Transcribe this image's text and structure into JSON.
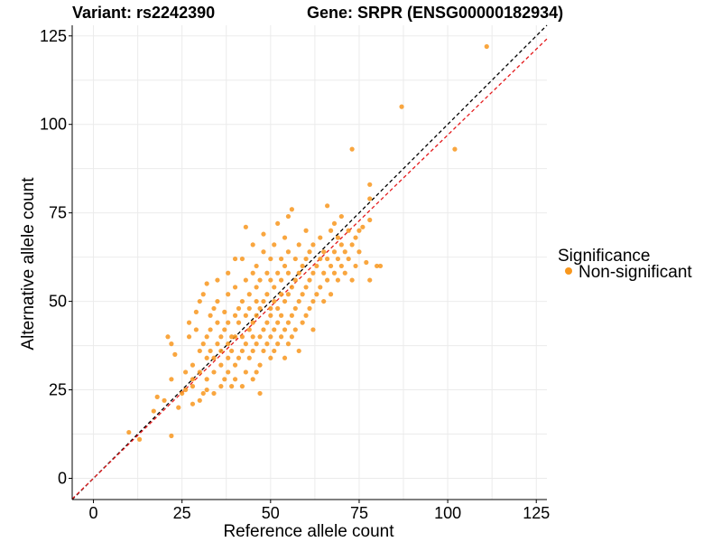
{
  "chart_data": {
    "type": "scatter",
    "title_left": "Variant: rs2242390",
    "title_right": "Gene: SRPR (ENSG00000182934)",
    "xlabel": "Reference allele count",
    "ylabel": "Alternative allele count",
    "xlim": [
      -6,
      128
    ],
    "ylim": [
      -6,
      128
    ],
    "xticks": [
      0,
      25,
      50,
      75,
      100,
      125
    ],
    "yticks": [
      0,
      25,
      50,
      75,
      100,
      125
    ],
    "grid": true,
    "legend": {
      "title": "Significance",
      "placement": "right",
      "entries": [
        {
          "label": "Non-significant",
          "color": "#f8971d"
        }
      ]
    },
    "reference_lines": [
      {
        "style": "dashed",
        "color": "#000000",
        "slope": 1.0,
        "intercept": 0
      },
      {
        "style": "dashed",
        "color": "#e41a1c",
        "slope": 0.97,
        "intercept": 0
      }
    ],
    "series": [
      {
        "color": "#f8971d",
        "points": [
          [
            10,
            13
          ],
          [
            13,
            11
          ],
          [
            17,
            19
          ],
          [
            18,
            23
          ],
          [
            20,
            22
          ],
          [
            21,
            40
          ],
          [
            22,
            12
          ],
          [
            22,
            28
          ],
          [
            22,
            38
          ],
          [
            23,
            35
          ],
          [
            24,
            20
          ],
          [
            25,
            24
          ],
          [
            26,
            25
          ],
          [
            26,
            30
          ],
          [
            27,
            40
          ],
          [
            27,
            44
          ],
          [
            28,
            21
          ],
          [
            28,
            26
          ],
          [
            28,
            28
          ],
          [
            28,
            32
          ],
          [
            29,
            42
          ],
          [
            29,
            47
          ],
          [
            30,
            22
          ],
          [
            30,
            30
          ],
          [
            30,
            36
          ],
          [
            30,
            50
          ],
          [
            31,
            24
          ],
          [
            31,
            38
          ],
          [
            31,
            52
          ],
          [
            32,
            25
          ],
          [
            32,
            28
          ],
          [
            32,
            34
          ],
          [
            32,
            40
          ],
          [
            32,
            55
          ],
          [
            33,
            36
          ],
          [
            33,
            42
          ],
          [
            33,
            46
          ],
          [
            34,
            24
          ],
          [
            34,
            30
          ],
          [
            34,
            34
          ],
          [
            34,
            48
          ],
          [
            35,
            38
          ],
          [
            35,
            44
          ],
          [
            35,
            50
          ],
          [
            35,
            56
          ],
          [
            36,
            26
          ],
          [
            36,
            32
          ],
          [
            36,
            36
          ],
          [
            36,
            40
          ],
          [
            37,
            28
          ],
          [
            37,
            42
          ],
          [
            37,
            47
          ],
          [
            38,
            30
          ],
          [
            38,
            34
          ],
          [
            38,
            38
          ],
          [
            38,
            44
          ],
          [
            38,
            52
          ],
          [
            38,
            58
          ],
          [
            39,
            26
          ],
          [
            39,
            36
          ],
          [
            39,
            40
          ],
          [
            40,
            28
          ],
          [
            40,
            32
          ],
          [
            40,
            40
          ],
          [
            40,
            46
          ],
          [
            40,
            54
          ],
          [
            40,
            62
          ],
          [
            41,
            34
          ],
          [
            41,
            44
          ],
          [
            41,
            48
          ],
          [
            42,
            26
          ],
          [
            42,
            36
          ],
          [
            42,
            40
          ],
          [
            42,
            50
          ],
          [
            42,
            62
          ],
          [
            43,
            30
          ],
          [
            43,
            38
          ],
          [
            43,
            46
          ],
          [
            43,
            56
          ],
          [
            43,
            71
          ],
          [
            44,
            34
          ],
          [
            44,
            42
          ],
          [
            44,
            48
          ],
          [
            44,
            52
          ],
          [
            45,
            28
          ],
          [
            45,
            36
          ],
          [
            45,
            40
          ],
          [
            45,
            44
          ],
          [
            45,
            58
          ],
          [
            45,
            66
          ],
          [
            46,
            30
          ],
          [
            46,
            38
          ],
          [
            46,
            46
          ],
          [
            46,
            50
          ],
          [
            46,
            54
          ],
          [
            46,
            60
          ],
          [
            47,
            24
          ],
          [
            47,
            32
          ],
          [
            47,
            40
          ],
          [
            47,
            48
          ],
          [
            47,
            56
          ],
          [
            48,
            36
          ],
          [
            48,
            42
          ],
          [
            48,
            50
          ],
          [
            48,
            64
          ],
          [
            48,
            69
          ],
          [
            49,
            38
          ],
          [
            49,
            44
          ],
          [
            49,
            52
          ],
          [
            49,
            58
          ],
          [
            50,
            34
          ],
          [
            50,
            40
          ],
          [
            50,
            46
          ],
          [
            50,
            48
          ],
          [
            50,
            56
          ],
          [
            50,
            62
          ],
          [
            51,
            36
          ],
          [
            51,
            42
          ],
          [
            51,
            50
          ],
          [
            51,
            54
          ],
          [
            51,
            66
          ],
          [
            52,
            38
          ],
          [
            52,
            44
          ],
          [
            52,
            48
          ],
          [
            52,
            58
          ],
          [
            52,
            72
          ],
          [
            53,
            40
          ],
          [
            53,
            46
          ],
          [
            53,
            52
          ],
          [
            53,
            56
          ],
          [
            53,
            62
          ],
          [
            54,
            34
          ],
          [
            54,
            42
          ],
          [
            54,
            50
          ],
          [
            54,
            60
          ],
          [
            54,
            68
          ],
          [
            55,
            38
          ],
          [
            55,
            44
          ],
          [
            55,
            52
          ],
          [
            55,
            58
          ],
          [
            55,
            64
          ],
          [
            55,
            74
          ],
          [
            56,
            40
          ],
          [
            56,
            46
          ],
          [
            56,
            54
          ],
          [
            56,
            76
          ],
          [
            57,
            42
          ],
          [
            57,
            48
          ],
          [
            57,
            56
          ],
          [
            57,
            62
          ],
          [
            58,
            36
          ],
          [
            58,
            50
          ],
          [
            58,
            58
          ],
          [
            58,
            66
          ],
          [
            59,
            44
          ],
          [
            59,
            52
          ],
          [
            59,
            60
          ],
          [
            60,
            46
          ],
          [
            60,
            54
          ],
          [
            60,
            62
          ],
          [
            60,
            70
          ],
          [
            61,
            48
          ],
          [
            61,
            56
          ],
          [
            61,
            64
          ],
          [
            62,
            42
          ],
          [
            62,
            50
          ],
          [
            62,
            58
          ],
          [
            62,
            66
          ],
          [
            63,
            52
          ],
          [
            63,
            60
          ],
          [
            64,
            54
          ],
          [
            64,
            62
          ],
          [
            64,
            68
          ],
          [
            65,
            50
          ],
          [
            65,
            58
          ],
          [
            65,
            64
          ],
          [
            66,
            56
          ],
          [
            66,
            62
          ],
          [
            66,
            77
          ],
          [
            67,
            52
          ],
          [
            67,
            60
          ],
          [
            67,
            70
          ],
          [
            68,
            58
          ],
          [
            68,
            64
          ],
          [
            68,
            72
          ],
          [
            69,
            56
          ],
          [
            69,
            62
          ],
          [
            69,
            68
          ],
          [
            70,
            60
          ],
          [
            70,
            66
          ],
          [
            70,
            74
          ],
          [
            71,
            58
          ],
          [
            71,
            64
          ],
          [
            72,
            62
          ],
          [
            72,
            70
          ],
          [
            73,
            56
          ],
          [
            73,
            66
          ],
          [
            73,
            93
          ],
          [
            74,
            60
          ],
          [
            74,
            68
          ],
          [
            75,
            64
          ],
          [
            75,
            70
          ],
          [
            76,
            71
          ],
          [
            77,
            61
          ],
          [
            78,
            56
          ],
          [
            78,
            73
          ],
          [
            78,
            79
          ],
          [
            78,
            83
          ],
          [
            80,
            60
          ],
          [
            81,
            60
          ],
          [
            87,
            105
          ],
          [
            102,
            93
          ],
          [
            111,
            122
          ]
        ]
      }
    ]
  }
}
